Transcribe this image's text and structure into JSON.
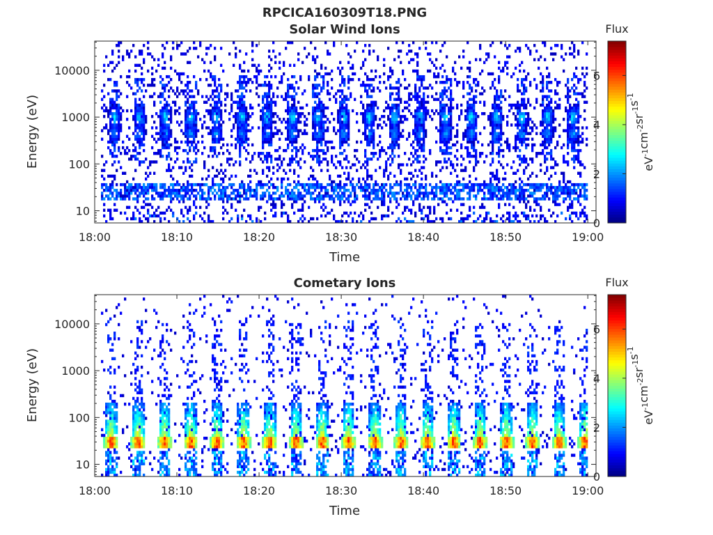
{
  "figure": {
    "title": "RPCICA160309T18.PNG"
  },
  "chart_data": [
    {
      "type": "heatmap",
      "title": "Solar Wind Ions",
      "xlabel": "Time",
      "ylabel": "Energy (eV)",
      "xticks": [
        "18:00",
        "18:10",
        "18:20",
        "18:30",
        "18:40",
        "18:50",
        "19:00"
      ],
      "yticks": [
        "10",
        "100",
        "1000",
        "10000"
      ],
      "y_scale": "log",
      "xlim": [
        "18:00",
        "19:01"
      ],
      "ylim": [
        5.5,
        42000
      ],
      "colorbar": {
        "label": "Flux",
        "unit_label": "eV-1cm-2sr-1s-1",
        "ticks": [
          "0",
          "2",
          "4",
          "6"
        ],
        "range": [
          0,
          7.4
        ],
        "colormap": "jet"
      },
      "features": {
        "scan_cycle_minutes": 3.1,
        "bursts_at_minutes": [
          2.4,
          5.5,
          8.6,
          11.7,
          14.8,
          17.9,
          21.0,
          24.1,
          27.2,
          30.3,
          33.4,
          36.5,
          39.6,
          42.7,
          45.8,
          48.9,
          52.0,
          55.1,
          58.2
        ],
        "peak_energy_eV": 1000,
        "secondary_energy_eV": 450,
        "band_energy_eV": [
          18,
          40
        ],
        "peak_flux": 2.8,
        "background_flux": 0.8
      }
    },
    {
      "type": "heatmap",
      "title": "Cometary Ions",
      "xlabel": "Time",
      "ylabel": "Energy (eV)",
      "xticks": [
        "18:00",
        "18:10",
        "18:20",
        "18:30",
        "18:40",
        "18:50",
        "19:00"
      ],
      "yticks": [
        "10",
        "100",
        "1000",
        "10000"
      ],
      "y_scale": "log",
      "xlim": [
        "18:00",
        "19:01"
      ],
      "ylim": [
        5.5,
        42000
      ],
      "colorbar": {
        "label": "Flux",
        "unit_label": "eV-1cm-2sr-1s-1",
        "ticks": [
          "0",
          "2",
          "4",
          "6"
        ],
        "range": [
          0,
          7.4
        ],
        "colormap": "jet"
      },
      "features": {
        "scan_cycle_minutes": 3.2,
        "bursts_at_minutes": [
          2.0,
          5.3,
          8.5,
          11.7,
          14.9,
          18.1,
          21.3,
          24.5,
          27.7,
          30.9,
          34.1,
          37.3,
          40.5,
          43.7,
          46.9,
          50.1,
          53.3,
          56.5,
          59.7
        ],
        "peak_energy_eV": 30,
        "peak_flux": 6.1,
        "plume_top_energy_eV": 200,
        "background_flux": 0.9
      }
    }
  ]
}
